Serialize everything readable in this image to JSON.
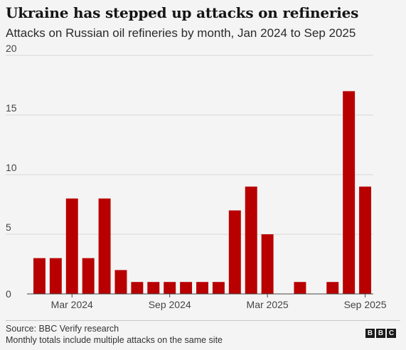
{
  "header": {
    "title": "Ukraine has stepped up attacks on refineries",
    "subtitle": "Attacks on Russian oil refineries by month, Jan 2024 to Sep 2025"
  },
  "footer": {
    "source": "Source: BBC Verify research",
    "note": "Monthly totals include multiple attacks on the same site",
    "logo": [
      "B",
      "B",
      "C"
    ]
  },
  "colors": {
    "bar": "#b80000",
    "grid": "#d9d9d9",
    "axis": "#444444"
  },
  "chart_data": {
    "type": "bar",
    "categories": [
      "Jan 2024",
      "Feb 2024",
      "Mar 2024",
      "Apr 2024",
      "May 2024",
      "Jun 2024",
      "Jul 2024",
      "Aug 2024",
      "Sep 2024",
      "Oct 2024",
      "Nov 2024",
      "Dec 2024",
      "Jan 2025",
      "Feb 2025",
      "Mar 2025",
      "Apr 2025",
      "May 2025",
      "Jun 2025",
      "Jul 2025",
      "Aug 2025",
      "Sep 2025"
    ],
    "values": [
      3,
      3,
      8,
      3,
      8,
      2,
      1,
      1,
      1,
      1,
      1,
      1,
      7,
      9,
      5,
      0,
      1,
      0,
      1,
      17,
      9
    ],
    "x_tick_labels": [
      {
        "category": "Mar 2024",
        "label": "Mar 2024"
      },
      {
        "category": "Sep 2024",
        "label": "Sep 2024"
      },
      {
        "category": "Mar 2025",
        "label": "Mar 2025"
      },
      {
        "category": "Sep 2025",
        "label": "Sep 2025"
      }
    ],
    "yticks": [
      0,
      5,
      10,
      15,
      20
    ],
    "ylim": [
      0,
      20
    ],
    "grid": true,
    "legend": "none"
  }
}
